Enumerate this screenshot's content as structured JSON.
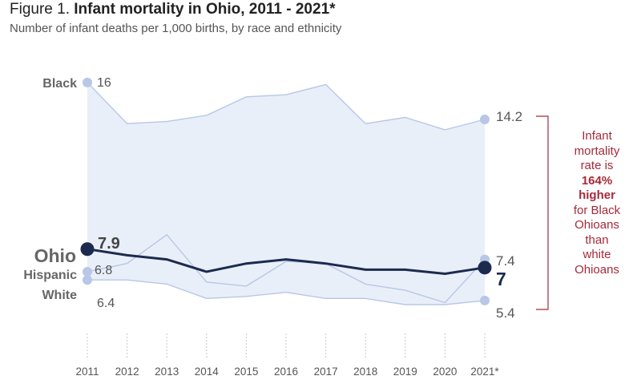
{
  "title": {
    "prefix": "Figure 1.",
    "main": "Infant mortality in Ohio, 2011 - 2021*"
  },
  "subtitle": "Number of infant deaths per 1,000 births, by race and ethnicity",
  "callout": {
    "line1": "Infant",
    "line2": "mortality",
    "line3": "rate is",
    "bold1": "164%",
    "bold2": "higher",
    "line4": "for Black",
    "line5": "Ohioans",
    "line6": "than",
    "line7": "white",
    "line8": "Ohioans"
  },
  "colors": {
    "series_light": "#b8c7e6",
    "fill": "#e9eff9",
    "ohio": "#1c2a4f",
    "callout": "#a52a3a"
  },
  "chart_data": {
    "type": "line",
    "title": "Infant mortality in Ohio, 2011 - 2021*",
    "subtitle": "Number of infant deaths per 1,000 births, by race and ethnicity",
    "x": [
      "2011",
      "2012",
      "2013",
      "2014",
      "2015",
      "2016",
      "2017",
      "2018",
      "2019",
      "2020",
      "2021*"
    ],
    "ylim": [
      4.5,
      16.5
    ],
    "grid": false,
    "series": [
      {
        "name": "Black",
        "values": [
          16,
          14.0,
          14.1,
          14.4,
          15.3,
          15.4,
          15.9,
          14.0,
          14.3,
          13.7,
          14.2
        ],
        "start_label": "16",
        "end_label": "14.2"
      },
      {
        "name": "Ohio",
        "values": [
          7.9,
          7.6,
          7.4,
          6.8,
          7.2,
          7.4,
          7.2,
          6.9,
          6.9,
          6.7,
          7.0
        ],
        "start_label": "7.9",
        "end_label": "7"
      },
      {
        "name": "Hispanic",
        "values": [
          6.8,
          7.2,
          8.6,
          6.3,
          6.1,
          7.3,
          7.2,
          6.2,
          5.9,
          5.3,
          7.4
        ],
        "start_label": "6.8",
        "end_label": "7.4"
      },
      {
        "name": "White",
        "values": [
          6.4,
          6.4,
          6.2,
          5.5,
          5.6,
          5.8,
          5.5,
          5.5,
          5.2,
          5.2,
          5.4
        ],
        "start_label": "6.4",
        "end_label": "5.4"
      }
    ]
  }
}
